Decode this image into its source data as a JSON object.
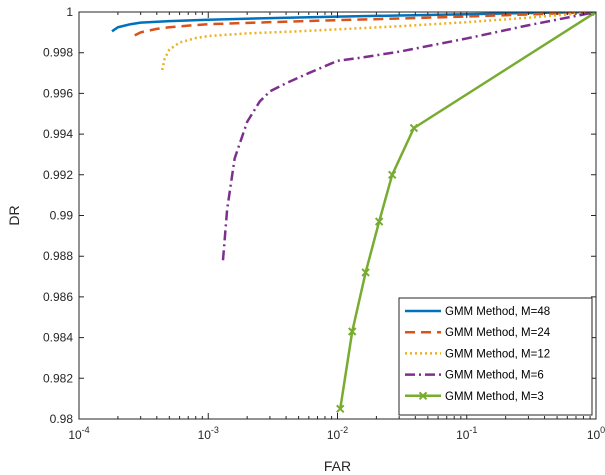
{
  "chart_data": {
    "type": "line",
    "title": "",
    "xlabel": "FAR",
    "ylabel": "DR",
    "xscale": "log",
    "xlim": [
      0.0001,
      1
    ],
    "ylim": [
      0.98,
      1
    ],
    "grid": false,
    "legend_position": "bottom-right",
    "x_ticks": [
      {
        "value": 0.0001,
        "base": "10",
        "exp": "-4"
      },
      {
        "value": 0.001,
        "base": "10",
        "exp": "-3"
      },
      {
        "value": 0.01,
        "base": "10",
        "exp": "-2"
      },
      {
        "value": 0.1,
        "base": "10",
        "exp": "-1"
      },
      {
        "value": 1,
        "base": "10",
        "exp": "0"
      }
    ],
    "y_ticks": [
      {
        "value": 0.98,
        "label": "0.98"
      },
      {
        "value": 0.982,
        "label": "0.982"
      },
      {
        "value": 0.984,
        "label": "0.984"
      },
      {
        "value": 0.986,
        "label": "0.986"
      },
      {
        "value": 0.988,
        "label": "0.988"
      },
      {
        "value": 0.99,
        "label": "0.99"
      },
      {
        "value": 0.992,
        "label": "0.992"
      },
      {
        "value": 0.994,
        "label": "0.994"
      },
      {
        "value": 0.996,
        "label": "0.996"
      },
      {
        "value": 0.998,
        "label": "0.998"
      },
      {
        "value": 1,
        "label": "1"
      }
    ],
    "series": [
      {
        "name": "GMM Method, M=48",
        "color": "#0072BD",
        "dash": "solid",
        "marker": "none",
        "x": [
          0.00018,
          0.0002,
          0.00025,
          0.0003,
          0.0005,
          0.001,
          0.003,
          0.01,
          0.03,
          0.1,
          0.3,
          1
        ],
        "y": [
          0.99905,
          0.99925,
          0.9994,
          0.99948,
          0.99955,
          0.99962,
          0.9997,
          0.99977,
          0.99983,
          0.99989,
          0.99995,
          1
        ]
      },
      {
        "name": "GMM Method, M=24",
        "color": "#D95319",
        "dash": "dashed",
        "marker": "none",
        "x": [
          0.00027,
          0.0003,
          0.0004,
          0.0005,
          0.0007,
          0.001,
          0.003,
          0.01,
          0.03,
          0.1,
          0.3,
          1
        ],
        "y": [
          0.99885,
          0.999,
          0.99917,
          0.99925,
          0.99933,
          0.9994,
          0.9995,
          0.9996,
          0.99968,
          0.99978,
          0.99988,
          1
        ]
      },
      {
        "name": "GMM Method, M=12",
        "color": "#EDB120",
        "dash": "dotted",
        "marker": "none",
        "x": [
          0.00044,
          0.00046,
          0.0005,
          0.0006,
          0.0008,
          0.001,
          0.002,
          0.005,
          0.01,
          0.03,
          0.1,
          0.3,
          1
        ],
        "y": [
          0.99715,
          0.9977,
          0.99815,
          0.9985,
          0.99872,
          0.99882,
          0.99895,
          0.99905,
          0.99915,
          0.9993,
          0.9995,
          0.99972,
          1
        ]
      },
      {
        "name": "GMM Method, M=6",
        "color": "#7E2F8E",
        "dash": "dashdot",
        "marker": "none",
        "x": [
          0.0013,
          0.0014,
          0.0016,
          0.002,
          0.0025,
          0.003,
          0.004,
          0.006,
          0.01,
          0.015,
          0.03,
          0.1,
          0.3,
          1
        ],
        "y": [
          0.9878,
          0.9903,
          0.9928,
          0.9946,
          0.9956,
          0.9961,
          0.9965,
          0.997,
          0.9976,
          0.99775,
          0.99805,
          0.9987,
          0.99935,
          1
        ]
      },
      {
        "name": "GMM Method, M=3",
        "color": "#77AC30",
        "dash": "solid",
        "marker": "x",
        "x": [
          0.0105,
          0.013,
          0.0165,
          0.021,
          0.0265,
          0.039,
          1
        ],
        "y": [
          0.9805,
          0.9843,
          0.9872,
          0.9897,
          0.992,
          0.9943,
          1
        ]
      }
    ]
  }
}
